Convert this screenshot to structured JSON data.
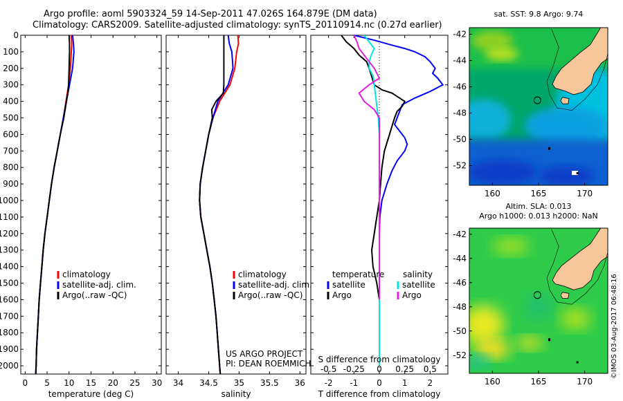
{
  "header": {
    "line1": "Argo profile: aoml 5903324_59 14-Sep-2011 47.026S 164.879E (DM data)",
    "line2": "Climatology: CARS2009. Satellite-adjusted climatology: synTS_20110914.nc (0.27d earlier)"
  },
  "credit": "©IMOS 03-Aug-2017 06:48:16",
  "colors": {
    "climatology": "#ff0000",
    "satellite": "#0000ff",
    "argo": "#000000",
    "salinity_satellite": "#00e5e5",
    "salinity_argo": "#e020e0",
    "land": "#f7c79a"
  },
  "chart_data": [
    {
      "id": "temperature",
      "type": "line",
      "xlabel": "temperature (deg C)",
      "ylabel": "",
      "xlim": [
        -1,
        31
      ],
      "xticks": [
        0,
        5,
        10,
        15,
        20,
        25,
        30
      ],
      "ylim": [
        2050,
        0
      ],
      "yticks": [
        0,
        100,
        200,
        300,
        400,
        500,
        600,
        700,
        800,
        900,
        1000,
        1100,
        1200,
        1300,
        1400,
        1500,
        1600,
        1700,
        1800,
        1900,
        2000
      ],
      "legend_position": "lower-right",
      "series": [
        {
          "name": "climatology",
          "color": "#ff0000",
          "y": [
            0,
            50,
            100,
            200,
            300,
            400,
            500,
            600,
            700,
            800,
            900,
            1000,
            1100,
            1200,
            1300,
            1400,
            1500,
            1600,
            1700,
            1800,
            1900,
            2000,
            2050
          ],
          "x": [
            10.5,
            10.6,
            10.5,
            10.3,
            9.9,
            9.3,
            8.7,
            8.0,
            7.3,
            6.6,
            6.0,
            5.5,
            5.0,
            4.5,
            4.1,
            3.8,
            3.5,
            3.2,
            3.0,
            2.8,
            2.6,
            2.5,
            2.4
          ]
        },
        {
          "name": "satellite-adj. clim.",
          "color": "#0000ff",
          "y": [
            0,
            50,
            100,
            200,
            300,
            400,
            500,
            600,
            700,
            800,
            900,
            1000,
            1100,
            1200,
            1300,
            1400,
            1500,
            1600,
            1700,
            1800,
            1900,
            2000,
            2050
          ],
          "x": [
            10.8,
            11.0,
            11.1,
            10.8,
            10.1,
            9.4,
            8.7,
            8.0,
            7.3,
            6.6,
            6.0,
            5.5,
            5.0,
            4.5,
            4.1,
            3.8,
            3.5,
            3.2,
            3.0,
            2.8,
            2.6,
            2.5,
            2.4
          ]
        },
        {
          "name": "Argo(..raw -QC)",
          "color": "#000000",
          "y": [
            0,
            50,
            100,
            200,
            300,
            350,
            400,
            500,
            600,
            700,
            800,
            900,
            1000,
            1100,
            1200,
            1300,
            1400,
            1500,
            1600,
            1700,
            1800,
            1900,
            2000,
            2050
          ],
          "x": [
            10.0,
            10.1,
            10.1,
            10.0,
            9.9,
            9.7,
            9.4,
            8.8,
            8.0,
            7.3,
            6.6,
            6.0,
            5.5,
            5.0,
            4.5,
            4.1,
            3.8,
            3.5,
            3.2,
            3.0,
            2.8,
            2.6,
            2.5,
            2.4
          ]
        }
      ]
    },
    {
      "id": "salinity",
      "type": "line",
      "xlabel": "salinity",
      "ylabel": "",
      "xlim": [
        33.8,
        36.1
      ],
      "xticks": [
        34,
        34.5,
        35,
        35.5,
        36
      ],
      "ylim": [
        2050,
        0
      ],
      "legend_position": "lower-right",
      "annotation_lines": [
        "US ARGO PROJECT",
        "PI: DEAN ROEMMICH"
      ],
      "series": [
        {
          "name": "climatology",
          "color": "#ff0000",
          "y": [
            0,
            50,
            100,
            200,
            300,
            400,
            500,
            600,
            700,
            800,
            900,
            1000,
            1100,
            1200,
            1300,
            1400,
            1500,
            1600,
            1700,
            1800,
            1900,
            2000,
            2050
          ],
          "x": [
            34.98,
            34.99,
            34.96,
            34.93,
            34.85,
            34.68,
            34.57,
            34.5,
            34.45,
            34.4,
            34.36,
            34.35,
            34.37,
            34.42,
            34.47,
            34.52,
            34.56,
            34.59,
            34.62,
            34.64,
            34.66,
            34.68,
            34.69
          ]
        },
        {
          "name": "satellite-adj. clim.",
          "color": "#0000ff",
          "y": [
            0,
            50,
            100,
            200,
            300,
            400,
            500,
            600,
            700,
            800,
            900,
            1000,
            1100,
            1200,
            1300,
            1400,
            1500,
            1600,
            1700,
            1800,
            1900,
            2000,
            2050
          ],
          "x": [
            34.82,
            34.84,
            34.88,
            34.9,
            34.82,
            34.65,
            34.57,
            34.5,
            34.45,
            34.4,
            34.36,
            34.35,
            34.37,
            34.42,
            34.47,
            34.52,
            34.56,
            34.59,
            34.62,
            34.64,
            34.66,
            34.68,
            34.69
          ]
        },
        {
          "name": "Argo(..raw -QC)",
          "color": "#000000",
          "y": [
            0,
            50,
            100,
            200,
            300,
            350,
            400,
            450,
            500,
            600,
            700,
            800,
            900,
            1000,
            1100,
            1200,
            1300,
            1400,
            1500,
            1600,
            1700,
            1800,
            1900,
            2000,
            2050
          ],
          "x": [
            34.75,
            34.75,
            34.75,
            34.75,
            34.75,
            34.74,
            34.62,
            34.55,
            34.56,
            34.5,
            34.45,
            34.4,
            34.36,
            34.35,
            34.37,
            34.42,
            34.47,
            34.52,
            34.56,
            34.59,
            34.62,
            34.64,
            34.66,
            34.68,
            34.69
          ]
        }
      ]
    },
    {
      "id": "difference",
      "type": "line",
      "xlabel": "T difference from climatology",
      "secondary_xlabel": "S difference from climatology",
      "xlim": [
        -2.7,
        2.7
      ],
      "xticks": [
        -2,
        -1,
        0,
        1,
        2
      ],
      "secondary_xticks": [
        -0.5,
        -0.25,
        0,
        0.25,
        0.5
      ],
      "secondary_xtick_labels": [
        "-0.5",
        "-0.25",
        "0",
        "0.25",
        "0.5"
      ],
      "secondary_xlim": [
        -0.675,
        0.675
      ],
      "ylim": [
        2050,
        0
      ],
      "legend_headers": [
        "temperature",
        "salinity"
      ],
      "legend_position": "lower-right",
      "series": [
        {
          "name": "satellite",
          "group": "temperature",
          "color": "#0000ff",
          "scale": "T",
          "y": [
            0,
            30,
            60,
            80,
            100,
            130,
            160,
            200,
            230,
            260,
            300,
            340,
            380,
            420,
            460,
            500,
            540,
            580,
            620,
            660,
            700,
            760,
            820,
            900,
            1000,
            1100,
            1200,
            1400,
            1600,
            2000
          ],
          "x": [
            -1.0,
            -0.2,
            0.5,
            1.0,
            1.4,
            1.8,
            2.0,
            2.2,
            2.1,
            2.3,
            2.5,
            2.0,
            1.4,
            0.9,
            0.8,
            0.7,
            0.6,
            0.8,
            1.0,
            1.1,
            1.0,
            0.7,
            0.5,
            0.3,
            0.1,
            0.02,
            0,
            0,
            0,
            0
          ]
        },
        {
          "name": "Argo",
          "group": "temperature",
          "color": "#000000",
          "scale": "T",
          "y": [
            0,
            40,
            80,
            120,
            160,
            200,
            250,
            300,
            330,
            350,
            380,
            400,
            430,
            460,
            500,
            550,
            600,
            700,
            800,
            900,
            1000,
            1100,
            1200,
            1300,
            1400,
            1500,
            1600,
            2000
          ],
          "x": [
            -1.5,
            -1.3,
            -1.0,
            -0.8,
            -0.5,
            -0.4,
            -0.3,
            -0.2,
            0.1,
            0.5,
            0.8,
            1.0,
            0.9,
            0.7,
            0.6,
            0.5,
            0.4,
            0.2,
            0.1,
            0.05,
            0.0,
            -0.1,
            -0.2,
            -0.3,
            -0.25,
            -0.1,
            0,
            0
          ]
        },
        {
          "name": "satellite",
          "group": "salinity",
          "color": "#00e5e5",
          "scale": "S",
          "y": [
            0,
            40,
            80,
            120,
            160,
            200,
            250,
            300,
            400,
            500,
            600,
            800,
            1000,
            1200,
            1400,
            1600,
            1800,
            2000
          ],
          "x": [
            -0.15,
            -0.1,
            -0.05,
            -0.08,
            -0.1,
            -0.1,
            -0.06,
            -0.05,
            -0.03,
            -0.01,
            0.0,
            0.0,
            0.0,
            0.0,
            0.0,
            0.0,
            0.0,
            0.0
          ]
        },
        {
          "name": "Argo",
          "group": "salinity",
          "color": "#e020e0",
          "scale": "S",
          "y": [
            0,
            40,
            80,
            120,
            160,
            200,
            260,
            300,
            350,
            400,
            450,
            500,
            600,
            700,
            800,
            900,
            1000,
            1100,
            1200,
            1400,
            1600
          ],
          "x": [
            -0.25,
            -0.22,
            -0.2,
            -0.15,
            -0.1,
            -0.05,
            0.0,
            -0.1,
            -0.2,
            -0.15,
            -0.05,
            0.0,
            0.0,
            0.0,
            0.0,
            0.0,
            0.0,
            0.0,
            0.0,
            0.0,
            0.0
          ]
        }
      ]
    },
    {
      "id": "sst-map",
      "type": "heatmap",
      "title": "sat. SST: 9.8 Argo: 9.74",
      "xlim": [
        157.5,
        172.5
      ],
      "ylim": [
        -53.5,
        -41.5
      ],
      "xticks": [
        160,
        165,
        170
      ],
      "yticks": [
        -42,
        -44,
        -46,
        -48,
        -50,
        -52
      ],
      "ytick_labels": [
        "-42",
        "-44",
        "-46",
        "-48",
        "-50",
        "-52"
      ],
      "marker": {
        "lon": 164.879,
        "lat": -47.026
      }
    },
    {
      "id": "sla-map",
      "type": "heatmap",
      "title_lines": [
        "Altim. SLA: 0.013",
        "Argo h1000: 0.013 h2000: NaN"
      ],
      "xlim": [
        157.5,
        172.5
      ],
      "ylim": [
        -53.5,
        -41.5
      ],
      "xticks": [
        160,
        165,
        170
      ],
      "yticks": [
        -42,
        -44,
        -46,
        -48,
        -50,
        -52
      ],
      "ytick_labels": [
        "-42",
        "-44",
        "-46",
        "-48",
        "-50",
        "-52"
      ],
      "marker": {
        "lon": 164.879,
        "lat": -47.026
      }
    }
  ]
}
